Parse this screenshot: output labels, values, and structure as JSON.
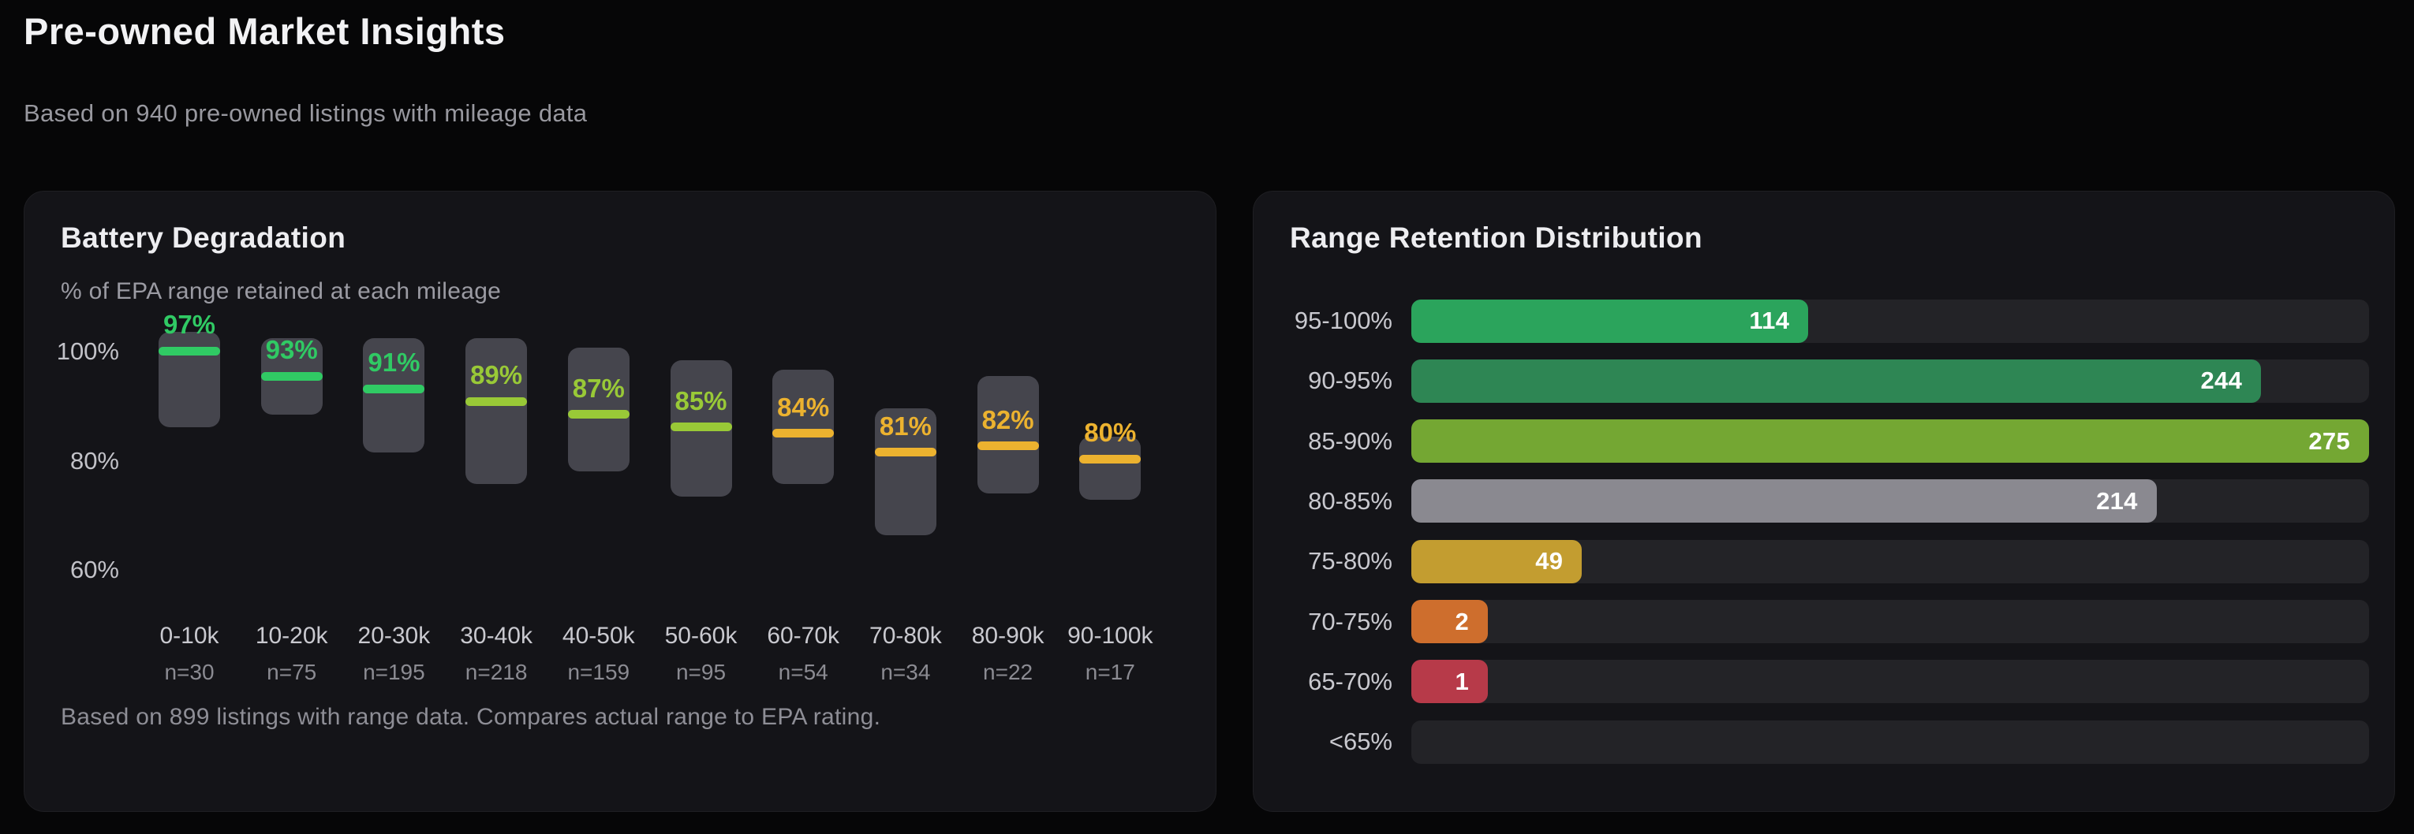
{
  "page": {
    "title": "Pre-owned Market Insights",
    "subtitle": "Based on 940 pre-owned listings with mileage data"
  },
  "battery_panel": {
    "title": "Battery Degradation",
    "subtitle": "% of EPA range retained at each mileage",
    "footnote": "Based on 899 listings with range data. Compares actual range to EPA rating."
  },
  "range_panel": {
    "title": "Range Retention Distribution"
  },
  "colors": {
    "green_high": "#30ca64",
    "yellow_green": "#99c937",
    "amber": "#ecb22f",
    "bar_green": "#2ba45c",
    "bar_dark_green": "#2e8654",
    "bar_olive": "#74a733",
    "bar_gray": "#8a8990",
    "bar_mustard": "#c39d30",
    "bar_orange": "#ce6e2d",
    "bar_red": "#b73a49"
  },
  "chart_data": [
    {
      "type": "box",
      "title": "Battery Degradation",
      "subtitle": "% of EPA range retained at each mileage",
      "ylabel": "% of EPA range retained",
      "y_ticks": [
        {
          "label": "100%",
          "value": 100
        },
        {
          "label": "80%",
          "value": 80
        },
        {
          "label": "60%",
          "value": 60
        }
      ],
      "ylim": [
        55,
        105
      ],
      "categories": [
        "0-10k",
        "10-20k",
        "20-30k",
        "30-40k",
        "40-50k",
        "50-60k",
        "60-70k",
        "70-80k",
        "80-90k",
        "90-100k"
      ],
      "n_labels": [
        "n=30",
        "n=75",
        "n=195",
        "n=218",
        "n=159",
        "n=95",
        "n=54",
        "n=34",
        "n=22",
        "n=17"
      ],
      "sample_sizes": [
        30,
        75,
        195,
        218,
        159,
        95,
        54,
        34,
        22,
        17
      ],
      "medians": [
        97,
        93,
        91,
        89,
        87,
        85,
        84,
        81,
        82,
        80
      ],
      "median_labels": [
        "97%",
        "93%",
        "91%",
        "89%",
        "87%",
        "85%",
        "84%",
        "81%",
        "82%",
        "80%"
      ],
      "box_high": [
        100,
        99,
        99,
        99,
        97.5,
        95.5,
        94,
        88,
        93,
        83.5
      ],
      "box_low": [
        85,
        87,
        81,
        76,
        78,
        74,
        76,
        68,
        74.5,
        73.5
      ],
      "median_colors": [
        "#30ca64",
        "#30ca64",
        "#30ca64",
        "#99c937",
        "#99c937",
        "#99c937",
        "#ecb22f",
        "#ecb22f",
        "#ecb22f",
        "#ecb22f"
      ]
    },
    {
      "type": "bar",
      "orientation": "horizontal",
      "title": "Range Retention Distribution",
      "categories": [
        "95-100%",
        "90-95%",
        "85-90%",
        "80-85%",
        "75-80%",
        "70-75%",
        "65-70%",
        "<65%"
      ],
      "values": [
        114,
        244,
        275,
        214,
        49,
        2,
        1,
        0
      ],
      "bar_colors": [
        "#2ba45c",
        "#2e8654",
        "#74a733",
        "#8a8990",
        "#c39d30",
        "#ce6e2d",
        "#b73a49",
        null
      ],
      "xlim": [
        0,
        275
      ],
      "legend": "none",
      "grid": false
    }
  ]
}
